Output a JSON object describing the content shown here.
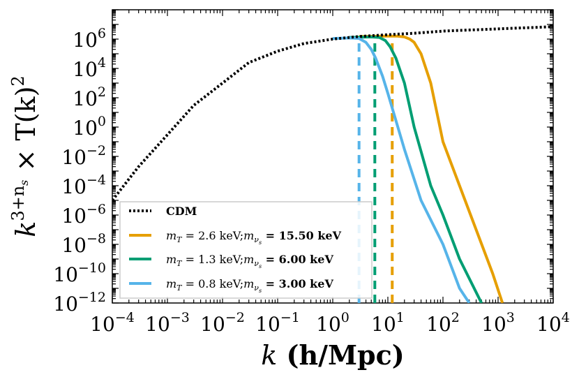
{
  "chart_data": {
    "type": "line",
    "title": "",
    "xlabel": {
      "symbol": "k",
      "units": " (h/Mpc)"
    },
    "ylabel": {
      "base": "k",
      "exponent": "3+n",
      "exponent_sub": "s",
      "rest": " × T(k)",
      "rest_exp": "2"
    },
    "x_scale": "log",
    "y_scale": "log",
    "xlim": [
      0.0001,
      10000
    ],
    "ylim": [
      1e-12,
      100000000.0
    ],
    "grid": false,
    "legend_position": "lower-left",
    "x_ticks": [
      {
        "value": 0.0001,
        "base": "10",
        "exp": "−4"
      },
      {
        "value": 0.001,
        "base": "10",
        "exp": "−3"
      },
      {
        "value": 0.01,
        "base": "10",
        "exp": "−2"
      },
      {
        "value": 0.1,
        "base": "10",
        "exp": "−1"
      },
      {
        "value": 1,
        "base": "10",
        "exp": "0"
      },
      {
        "value": 10,
        "base": "10",
        "exp": "1"
      },
      {
        "value": 100,
        "base": "10",
        "exp": "2"
      },
      {
        "value": 1000,
        "base": "10",
        "exp": "3"
      },
      {
        "value": 10000,
        "base": "10",
        "exp": "4"
      }
    ],
    "y_ticks": [
      {
        "value": 1000000.0,
        "base": "10",
        "exp": "6"
      },
      {
        "value": 10000.0,
        "base": "10",
        "exp": "4"
      },
      {
        "value": 100.0,
        "base": "10",
        "exp": "2"
      },
      {
        "value": 1,
        "base": "10",
        "exp": "0"
      },
      {
        "value": 0.01,
        "base": "10",
        "exp": "−2"
      },
      {
        "value": 0.0001,
        "base": "10",
        "exp": "−4"
      },
      {
        "value": 1e-06,
        "base": "10",
        "exp": "−6"
      },
      {
        "value": 1e-08,
        "base": "10",
        "exp": "−8"
      },
      {
        "value": 1e-10,
        "base": "10",
        "exp": "−10"
      },
      {
        "value": 1e-12,
        "base": "10",
        "exp": "−12"
      }
    ],
    "series": [
      {
        "name": "CDM",
        "color": "#000000",
        "style": "dotted",
        "x": [
          0.0001,
          0.0003,
          0.001,
          0.003,
          0.01,
          0.03,
          0.1,
          0.3,
          1,
          3,
          10,
          30,
          100,
          1000,
          10000
        ],
        "y": [
          1e-05,
          0.002,
          0.3,
          30,
          1000,
          25000,
          150000.0,
          500000.0,
          1000000.0,
          1500000.0,
          2000000.0,
          2500000.0,
          3500000.0,
          5000000.0,
          7000000.0
        ]
      },
      {
        "name_parts": {
          "mT": "m",
          "mT_sub": "T",
          "mT_val": " = 2.6 keV;",
          "mnu": "m",
          "mnu_sub": "ν",
          "mnu_subsub": "s",
          "mnu_val": " = 15.50 keV"
        },
        "color": "#E69F00",
        "style": "solid",
        "x": [
          3,
          10,
          15,
          20,
          25,
          30,
          40,
          60,
          100,
          200,
          400,
          800,
          1200
        ],
        "y": [
          1500000.0,
          1600000.0,
          1600000.0,
          1400000.0,
          1000000.0,
          600000.0,
          100000.0,
          1000.0,
          0.1,
          0.0001,
          1e-07,
          1e-10,
          1e-12
        ]
      },
      {
        "name_parts": {
          "mT": "m",
          "mT_sub": "T",
          "mT_val": " = 1.3 keV;",
          "mnu": "m",
          "mnu_sub": "ν",
          "mnu_subsub": "s",
          "mnu_val": " = 6.00 keV"
        },
        "color": "#009E73",
        "style": "solid",
        "x": [
          2,
          5,
          7,
          9,
          11,
          14,
          20,
          30,
          60,
          100,
          200,
          500
        ],
        "y": [
          1300000.0,
          1400000.0,
          1300000.0,
          800000.0,
          300000.0,
          50000.0,
          1000.0,
          1,
          0.0001,
          1e-06,
          1e-09,
          1e-12
        ]
      },
      {
        "name_parts": {
          "mT": "m",
          "mT_sub": "T",
          "mT_val": " = 0.8 keV;",
          "mnu": "m",
          "mnu_sub": "ν",
          "mnu_subsub": "s",
          "mnu_val": " = 3.00 keV"
        },
        "color": "#56B4E9",
        "style": "solid",
        "x": [
          1,
          2,
          3,
          4,
          5,
          6,
          8,
          10,
          20,
          40,
          100,
          200,
          300
        ],
        "y": [
          1100000.0,
          1200000.0,
          1100000.0,
          600000.0,
          200000.0,
          50000.0,
          3000.0,
          200.0,
          0.03,
          1e-05,
          1e-08,
          1e-11,
          1e-12
        ]
      }
    ],
    "vlines": [
      {
        "x": 3,
        "color": "#56B4E9",
        "ymax": 1000000.0
      },
      {
        "x": 5.8,
        "color": "#009E73",
        "ymax": 1000000.0
      },
      {
        "x": 12,
        "color": "#E69F00",
        "ymax": 1000000.0
      }
    ]
  }
}
